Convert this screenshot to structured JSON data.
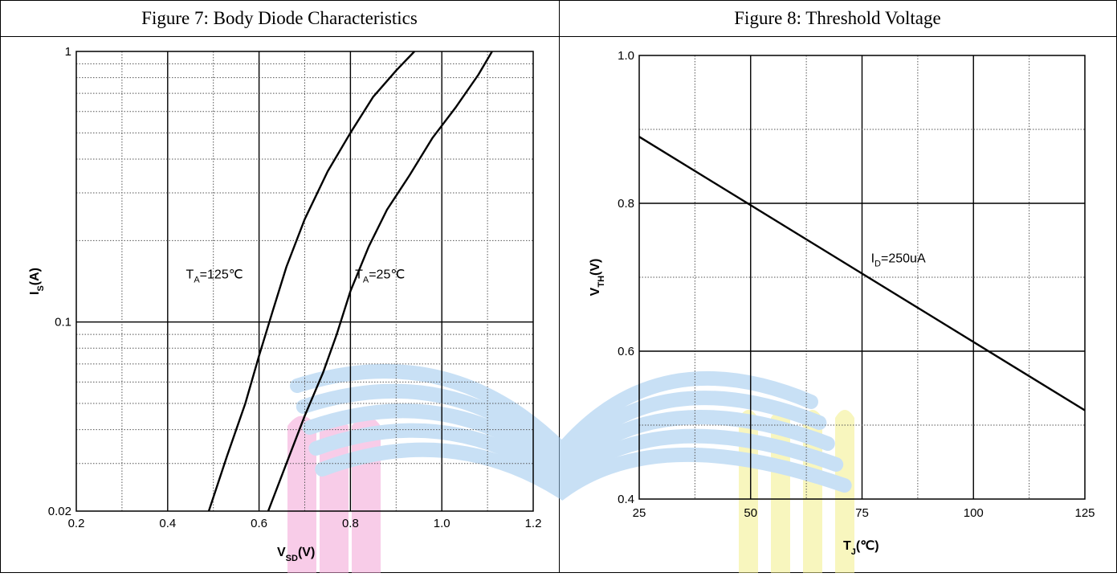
{
  "figures": [
    {
      "title": "Figure 7: Body Diode Characteristics"
    },
    {
      "title": "Figure 8: Threshold Voltage"
    }
  ],
  "chart_data": [
    {
      "type": "line",
      "title": "Figure 7: Body Diode Characteristics",
      "x_axis": {
        "label_main": "V",
        "label_sub": "SD",
        "label_unit": "(V)",
        "range": [
          0.2,
          1.2
        ],
        "ticks": [
          0.2,
          0.4,
          0.6,
          0.8,
          1.0,
          1.2
        ],
        "tick_labels": [
          "0.2",
          "0.4",
          "0.6",
          "0.8",
          "1.0",
          "1.2"
        ],
        "minor_step": 0.1
      },
      "y_axis": {
        "label_main": "I",
        "label_sub": "S",
        "label_unit": "(A)",
        "scale": "log",
        "range": [
          0.02,
          1
        ],
        "ticks": [
          0.02,
          0.1,
          1
        ],
        "tick_labels": [
          "0.02",
          "0.1",
          "1"
        ]
      },
      "grid": true,
      "series": [
        {
          "name_main": "T",
          "name_sub": "A",
          "name_rest": "=125℃",
          "x": [
            0.49,
            0.53,
            0.57,
            0.6,
            0.63,
            0.66,
            0.7,
            0.75,
            0.8,
            0.85,
            0.9,
            0.94
          ],
          "y": [
            0.02,
            0.032,
            0.05,
            0.075,
            0.11,
            0.16,
            0.24,
            0.36,
            0.5,
            0.68,
            0.85,
            1.0
          ]
        },
        {
          "name_main": "T",
          "name_sub": "A",
          "name_rest": "=25℃",
          "x": [
            0.62,
            0.66,
            0.7,
            0.74,
            0.77,
            0.8,
            0.84,
            0.88,
            0.93,
            0.98,
            1.03,
            1.08,
            1.11
          ],
          "y": [
            0.02,
            0.03,
            0.045,
            0.065,
            0.09,
            0.13,
            0.19,
            0.26,
            0.35,
            0.48,
            0.62,
            0.82,
            1.0
          ]
        }
      ],
      "annotations": [
        {
          "main": "T",
          "sub": "A",
          "rest": "=125℃",
          "x": 0.44,
          "y": 0.145
        },
        {
          "main": "T",
          "sub": "A",
          "rest": "=25℃",
          "x": 0.81,
          "y": 0.145
        }
      ]
    },
    {
      "type": "line",
      "title": "Figure 8: Threshold Voltage",
      "x_axis": {
        "label_main": "T",
        "label_sub": "J",
        "label_unit": "(℃)",
        "range": [
          25,
          125
        ],
        "ticks": [
          25,
          50,
          75,
          100,
          125
        ],
        "tick_labels": [
          "25",
          "50",
          "75",
          "100",
          "125"
        ],
        "minor_step": 12.5
      },
      "y_axis": {
        "label_main": "V",
        "label_sub": "TH",
        "label_unit": "(V)",
        "range": [
          0.4,
          1.0
        ],
        "ticks": [
          0.4,
          0.6,
          0.8,
          1.0
        ],
        "tick_labels": [
          "0.4",
          "0.6",
          "0.8",
          "1.0"
        ],
        "minor_step": 0.1
      },
      "grid": true,
      "series": [
        {
          "name_main": "I",
          "name_sub": "D",
          "name_rest": "=250uA",
          "x": [
            25,
            125
          ],
          "y": [
            0.89,
            0.52
          ]
        }
      ],
      "annotations": [
        {
          "main": "I",
          "sub": "D",
          "rest": "=250uA",
          "x": 77,
          "y": 0.72
        }
      ]
    }
  ],
  "watermark": {
    "description_colors": {
      "blue": "#9cc8ee",
      "pink": "#f4a3d6",
      "yellow": "#f4f08a"
    }
  }
}
